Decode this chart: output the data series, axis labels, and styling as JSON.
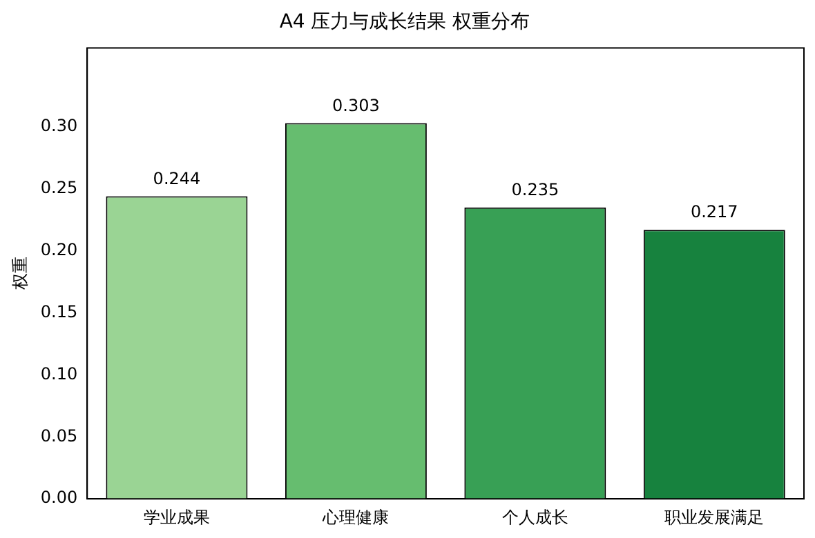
{
  "chart_data": {
    "type": "bar",
    "title": "A4 压力与成长结果 权重分布",
    "ylabel": "权重",
    "categories": [
      "学业成果",
      "心理健康",
      "个人成长",
      "职业发展满足"
    ],
    "values": [
      0.244,
      0.303,
      0.235,
      0.217
    ],
    "colors": [
      "#9ad494",
      "#66bd6f",
      "#38a055",
      "#17823e"
    ],
    "ylim": [
      0,
      0.3636
    ],
    "yticks": [
      {
        "value": 0,
        "label": "0.00"
      },
      {
        "value": 0.05,
        "label": "0.05"
      },
      {
        "value": 0.1,
        "label": "0.10"
      },
      {
        "value": 0.15,
        "label": "0.15"
      },
      {
        "value": 0.2,
        "label": "0.20"
      },
      {
        "value": 0.25,
        "label": "0.25"
      },
      {
        "value": 0.3,
        "label": "0.30"
      }
    ],
    "grid": false,
    "data_labels": true,
    "legend": false
  }
}
